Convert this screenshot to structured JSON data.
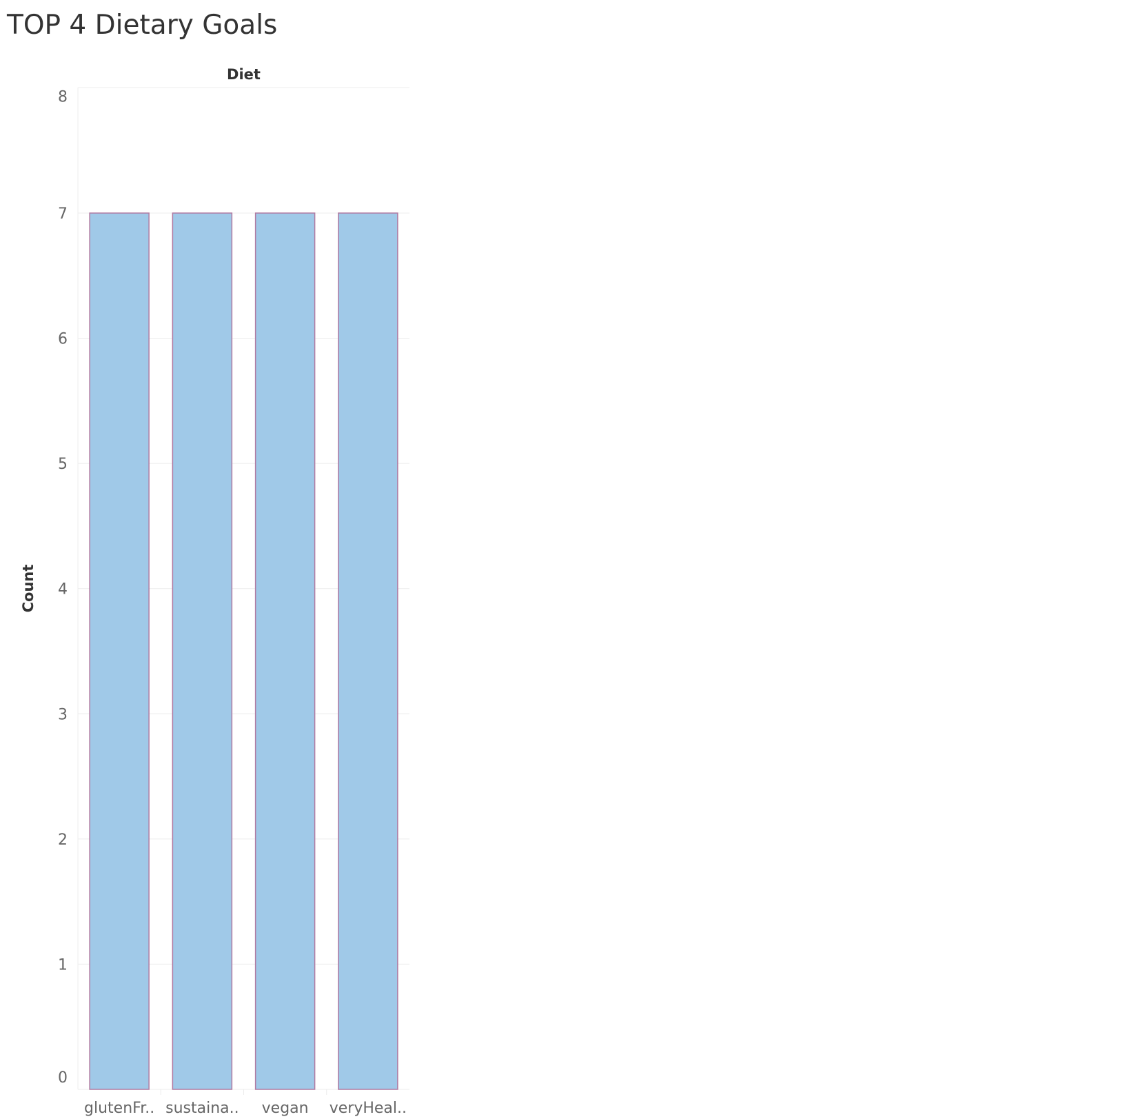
{
  "chart_data": {
    "type": "bar",
    "title": "TOP 4 Dietary Goals",
    "column_header": "Diet",
    "ylabel": "Count",
    "categories": [
      "glutenFr..",
      "sustaina..",
      "vegan",
      "veryHeal.."
    ],
    "values": [
      7,
      7,
      7,
      7
    ],
    "ylim": [
      0,
      8
    ],
    "yticks": [
      0,
      1,
      2,
      3,
      4,
      5,
      6,
      7,
      8
    ],
    "grid": true,
    "legend": "none",
    "colors": {
      "bar_fill": "#a0c9e8",
      "bar_stroke": "#b07aa1",
      "grid": "#ececec",
      "text": "#333333",
      "tick_text": "#666666"
    }
  }
}
